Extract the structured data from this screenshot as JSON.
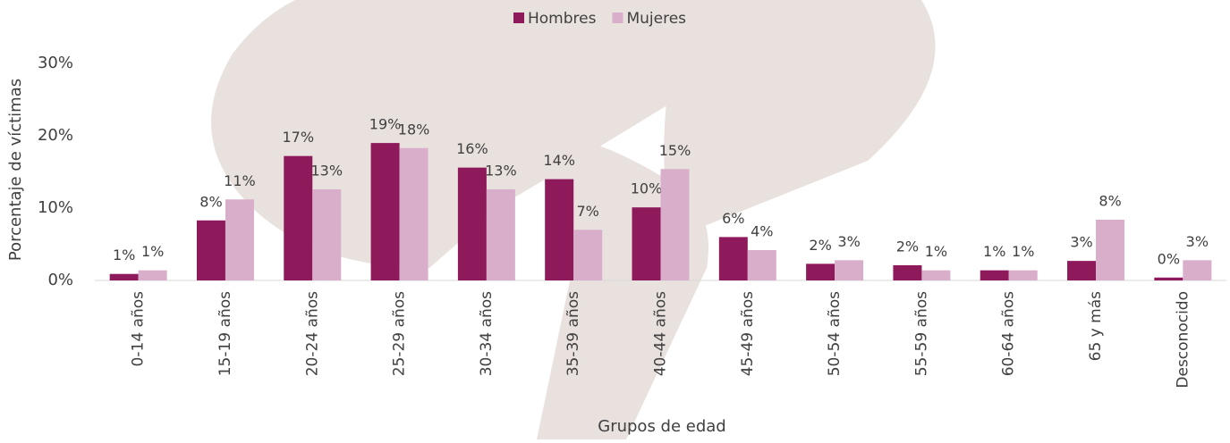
{
  "chart_data": {
    "type": "bar",
    "x_label": "Grupos de edad",
    "y_label": "Porcentaje de víctimas",
    "categories": [
      "0-14 años",
      "15-19 años",
      "20-24 años",
      "25-29 años",
      "30-34 años",
      "35-39 años",
      "40-44 años",
      "45-49 años",
      "50-54 años",
      "55-59 años",
      "60-64 años",
      "65 y más",
      "Desconocido"
    ],
    "series": [
      {
        "name": "Hombres",
        "color": "#8e1a5c",
        "values": [
          0.9,
          8.3,
          17.2,
          19.0,
          15.6,
          14.0,
          10.1,
          6.0,
          2.3,
          2.1,
          1.4,
          2.7,
          0.4
        ],
        "value_labels": [
          "1%",
          "8%",
          "17%",
          "19%",
          "16%",
          "14%",
          "10%",
          "6%",
          "2%",
          "2%",
          "1%",
          "3%",
          "0%"
        ]
      },
      {
        "name": "Mujeres",
        "color": "#d8aeca",
        "values": [
          1.4,
          11.2,
          12.6,
          18.3,
          12.6,
          7.0,
          15.4,
          4.2,
          2.8,
          1.4,
          1.4,
          8.4,
          2.8
        ],
        "value_labels": [
          "1%",
          "11%",
          "13%",
          "18%",
          "13%",
          "7%",
          "15%",
          "4%",
          "3%",
          "1%",
          "1%",
          "8%",
          "3%"
        ]
      }
    ],
    "ylim": [
      0,
      30
    ],
    "yticks": [
      {
        "value": 0,
        "label": "0%"
      },
      {
        "value": 10,
        "label": "10%"
      },
      {
        "value": 20,
        "label": "20%"
      },
      {
        "value": 30,
        "label": "30%"
      }
    ],
    "grid": false,
    "legend": "top"
  }
}
